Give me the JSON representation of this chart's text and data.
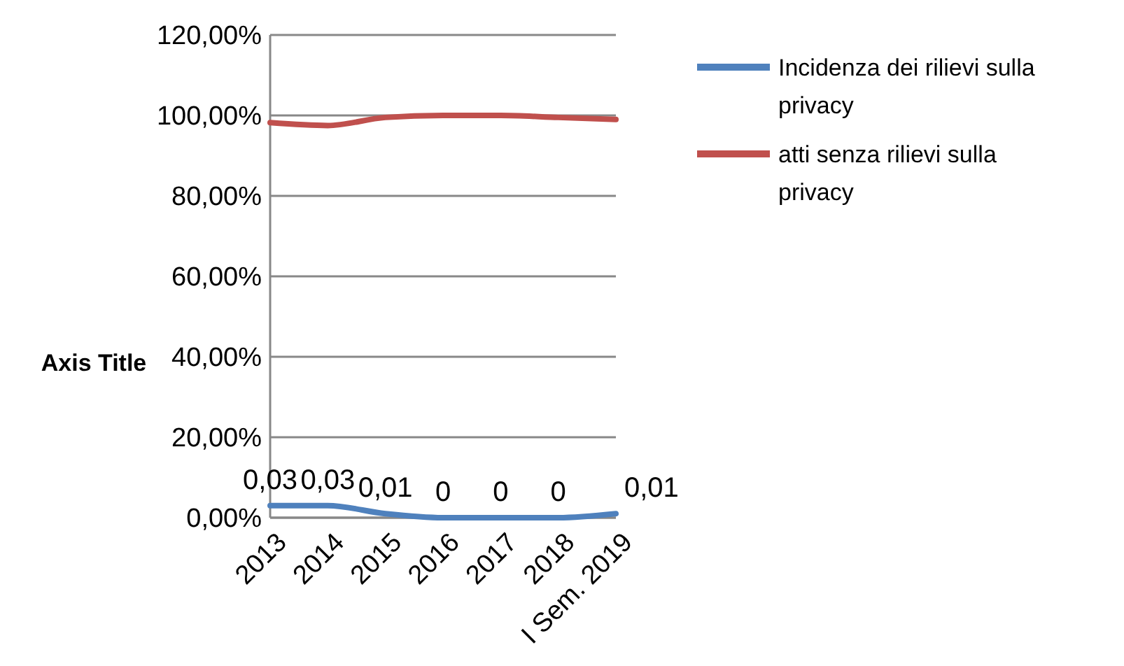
{
  "chart_data": {
    "type": "line",
    "ylabel": "Axis Title",
    "categories": [
      "2013",
      "2014",
      "2015",
      "2016",
      "2017",
      "2018",
      "I Sem. 2019"
    ],
    "series": [
      {
        "name": "Incidenza dei rilievi sulla privacy",
        "color": "#4f81bd",
        "values": [
          0.03,
          0.03,
          0.01,
          0,
          0,
          0,
          0.01
        ],
        "value_labels": [
          "0,03",
          "0,03",
          "0,01",
          "0",
          "0",
          "0",
          "0,01"
        ]
      },
      {
        "name": "atti senza rilievi sulla privacy",
        "color": "#c0504d",
        "values": [
          0.982,
          0.975,
          0.995,
          1.0,
          1.0,
          0.995,
          0.99
        ]
      }
    ],
    "ylim": [
      0,
      1.2
    ],
    "yticks": [
      {
        "value": 0,
        "label": "0,00%"
      },
      {
        "value": 0.2,
        "label": "20,00%"
      },
      {
        "value": 0.4,
        "label": "40,00%"
      },
      {
        "value": 0.6,
        "label": "60,00%"
      },
      {
        "value": 0.8,
        "label": "80,00%"
      },
      {
        "value": 1.0,
        "label": "100,00%"
      },
      {
        "value": 1.2,
        "label": "120,00%"
      }
    ],
    "grid": "y",
    "legend": "top right",
    "marker": "none"
  }
}
